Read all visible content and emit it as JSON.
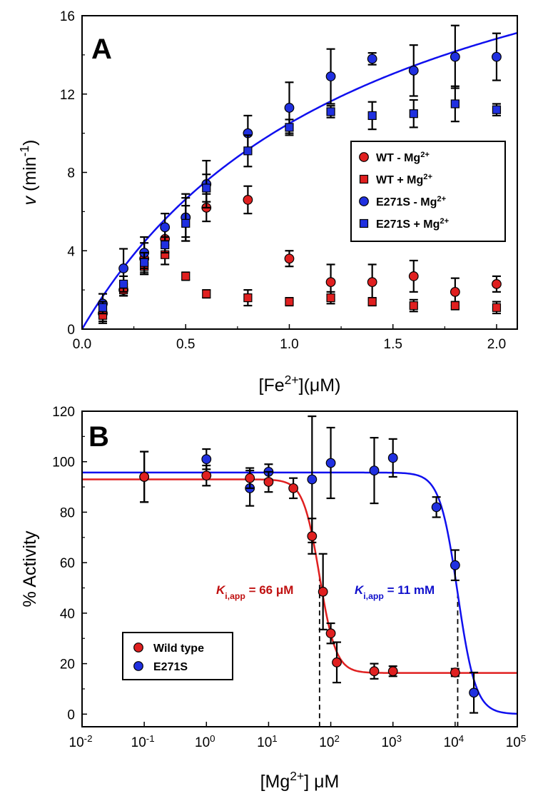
{
  "chart_data": [
    {
      "type": "scatter",
      "panel_label": "A",
      "xlabel": "[Fe2+](μM)",
      "ylabel": "v (min-1)",
      "xlim": [
        0,
        2.1
      ],
      "ylim": [
        0,
        16
      ],
      "x_ticks": [
        0,
        0.5,
        1.0,
        1.5,
        2.0
      ],
      "x_tick_labels": [
        "0.0",
        "0.5",
        "1.0",
        "1.5",
        "2.0"
      ],
      "y_ticks": [
        0,
        4,
        8,
        12,
        16
      ],
      "y_tick_labels": [
        "0",
        "4",
        "8",
        "12",
        "16"
      ],
      "legend_position": "center-right",
      "series": [
        {
          "name": "WT - Mg2+",
          "marker": "circle",
          "color": "#e02020",
          "x": [
            0.1,
            0.2,
            0.3,
            0.4,
            0.5,
            0.6,
            0.8,
            1.0,
            1.2,
            1.4,
            1.6,
            1.8,
            2.0
          ],
          "y": [
            0.8,
            2.0,
            3.6,
            4.6,
            5.7,
            6.2,
            6.6,
            3.6,
            2.4,
            2.4,
            2.7,
            1.9,
            2.3
          ],
          "err": [
            0.5,
            0.3,
            0.8,
            0.7,
            1.2,
            0.7,
            0.7,
            0.4,
            0.9,
            0.9,
            0.8,
            0.7,
            0.4
          ]
        },
        {
          "name": "WT + Mg2+",
          "marker": "square",
          "color": "#e02020",
          "x": [
            0.1,
            0.2,
            0.3,
            0.4,
            0.5,
            0.6,
            0.8,
            1.0,
            1.2,
            1.4,
            1.6,
            1.8,
            2.0
          ],
          "y": [
            0.7,
            2.0,
            3.2,
            3.8,
            2.7,
            1.8,
            1.6,
            1.4,
            1.6,
            1.4,
            1.2,
            1.2,
            1.1
          ],
          "err": [
            0.3,
            0.3,
            0.4,
            0.5,
            0.2,
            0.2,
            0.4,
            0.2,
            0.3,
            0.2,
            0.3,
            0.2,
            0.3
          ]
        },
        {
          "name": "E271S - Mg2+",
          "marker": "circle",
          "color": "#2030e0",
          "x": [
            0.1,
            0.2,
            0.3,
            0.4,
            0.5,
            0.6,
            0.8,
            1.0,
            1.2,
            1.4,
            1.6,
            1.8,
            2.0
          ],
          "y": [
            1.3,
            3.1,
            3.9,
            5.2,
            5.7,
            7.4,
            10.0,
            11.3,
            12.9,
            13.8,
            13.2,
            13.9,
            13.9
          ],
          "err": [
            0.5,
            1.0,
            0.8,
            0.7,
            1.0,
            1.2,
            0.9,
            1.3,
            1.4,
            0.3,
            1.3,
            1.6,
            1.2
          ]
        },
        {
          "name": "E271S + Mg2+",
          "marker": "square",
          "color": "#2030e0",
          "x": [
            0.1,
            0.2,
            0.3,
            0.4,
            0.5,
            0.6,
            0.8,
            1.0,
            1.2,
            1.4,
            1.6,
            1.8,
            2.0
          ],
          "y": [
            1.1,
            2.3,
            3.4,
            4.3,
            5.4,
            7.2,
            9.1,
            10.3,
            11.1,
            10.9,
            11.0,
            11.5,
            11.2
          ],
          "err": [
            0.3,
            0.4,
            0.5,
            0.4,
            0.9,
            0.7,
            0.8,
            0.4,
            0.3,
            0.7,
            0.7,
            0.9,
            0.3
          ]
        }
      ],
      "fit_curve": {
        "color": "#1010ee",
        "vmax": 25.2,
        "km": 1.4
      }
    },
    {
      "type": "scatter",
      "panel_label": "B",
      "xlabel": "[Mg2+] μM",
      "ylabel": "% Activity",
      "xscale": "log",
      "xlim": [
        0.01,
        100000
      ],
      "ylim": [
        -5,
        120
      ],
      "x_ticks": [
        0.01,
        0.1,
        1,
        10,
        100,
        1000,
        10000,
        100000
      ],
      "x_tick_base": "10",
      "x_tick_exponents": [
        "-2",
        "-1",
        "0",
        "1",
        "2",
        "3",
        "4",
        "5"
      ],
      "y_ticks": [
        0,
        20,
        40,
        60,
        80,
        100,
        120
      ],
      "y_tick_labels": [
        "0",
        "20",
        "40",
        "60",
        "80",
        "100",
        "120"
      ],
      "legend_position": "bottom-left",
      "series": [
        {
          "name": "Wild type",
          "marker": "circle",
          "color": "#e02020",
          "x": [
            0.1,
            1,
            5,
            10,
            25,
            50,
            75,
            100,
            125,
            500,
            1000,
            10000
          ],
          "y": [
            94,
            94.5,
            93.5,
            92,
            89.5,
            70.5,
            48.5,
            32,
            20.5,
            17,
            17,
            16.5
          ],
          "err": [
            10,
            4,
            4,
            4,
            4,
            7,
            15,
            4,
            8,
            3,
            2,
            1.5
          ]
        },
        {
          "name": "E271S",
          "marker": "circle",
          "color": "#2030e0",
          "x": [
            0.1,
            1,
            5,
            10,
            50,
            100,
            500,
            1000,
            5000,
            10000,
            20000
          ],
          "y": [
            94,
            101,
            89.5,
            96,
            93,
            99.5,
            96.5,
            101.5,
            82,
            59,
            8.5
          ],
          "err": [
            10,
            4,
            7,
            3,
            25,
            14,
            13,
            7.5,
            4,
            6,
            8
          ]
        }
      ],
      "fit_curves": [
        {
          "color": "#e02020",
          "top": 93,
          "bottom": 16.3,
          "ic50": 66,
          "hill": 3.3
        },
        {
          "color": "#1010ee",
          "top": 95.7,
          "bottom": 0,
          "ic50": 11000,
          "hill": 3.0
        }
      ],
      "reference_lines_x": [
        66,
        11000
      ],
      "annotations": [
        {
          "k": "K",
          "sub": "i,app",
          "text": " = 66 μM",
          "color": "#c01010"
        },
        {
          "k": "K",
          "sub": "i,app",
          "text": " = 11 mM",
          "color": "#1010cc"
        }
      ]
    }
  ]
}
